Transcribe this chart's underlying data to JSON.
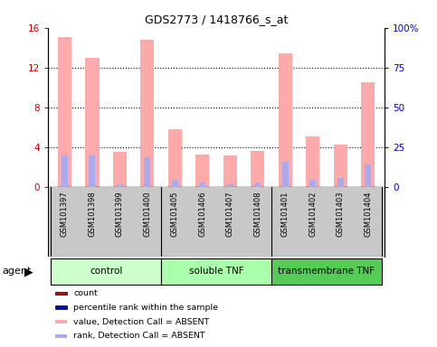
{
  "title": "GDS2773 / 1418766_s_at",
  "samples": [
    "GSM101397",
    "GSM101398",
    "GSM101399",
    "GSM101400",
    "GSM101405",
    "GSM101406",
    "GSM101407",
    "GSM101408",
    "GSM101401",
    "GSM101402",
    "GSM101403",
    "GSM101404"
  ],
  "pink_bars": [
    15.1,
    13.0,
    3.6,
    14.8,
    5.8,
    3.3,
    3.2,
    3.7,
    13.4,
    5.1,
    4.3,
    10.5
  ],
  "blue_bars_pct": [
    20.0,
    20.0,
    2.0,
    19.0,
    5.0,
    3.0,
    2.0,
    3.0,
    16.0,
    4.5,
    6.0,
    14.5
  ],
  "ylim_left": [
    0,
    16
  ],
  "ylim_right": [
    0,
    100
  ],
  "yticks_left": [
    0,
    4,
    8,
    12,
    16
  ],
  "yticks_right": [
    0,
    25,
    50,
    75,
    100
  ],
  "ytick_labels_right": [
    "0",
    "25",
    "50",
    "75",
    "100%"
  ],
  "groups": [
    {
      "label": "control",
      "start": 0,
      "end": 4,
      "color": "#ccffcc"
    },
    {
      "label": "soluble TNF",
      "start": 4,
      "end": 8,
      "color": "#aaffaa"
    },
    {
      "label": "transmembrane TNF",
      "start": 8,
      "end": 12,
      "color": "#55cc55"
    }
  ],
  "bar_width": 0.5,
  "pink_color": "#ffaaaa",
  "blue_color": "#aaaaee",
  "left_axis_color": "#cc0000",
  "right_axis_color": "#0000cc",
  "bg_color": "#c8c8c8",
  "legend_colors": [
    "#cc0000",
    "#0000cc",
    "#ffaaaa",
    "#aaaaee"
  ],
  "legend_labels": [
    "count",
    "percentile rank within the sample",
    "value, Detection Call = ABSENT",
    "rank, Detection Call = ABSENT"
  ],
  "agent_label": "agent"
}
